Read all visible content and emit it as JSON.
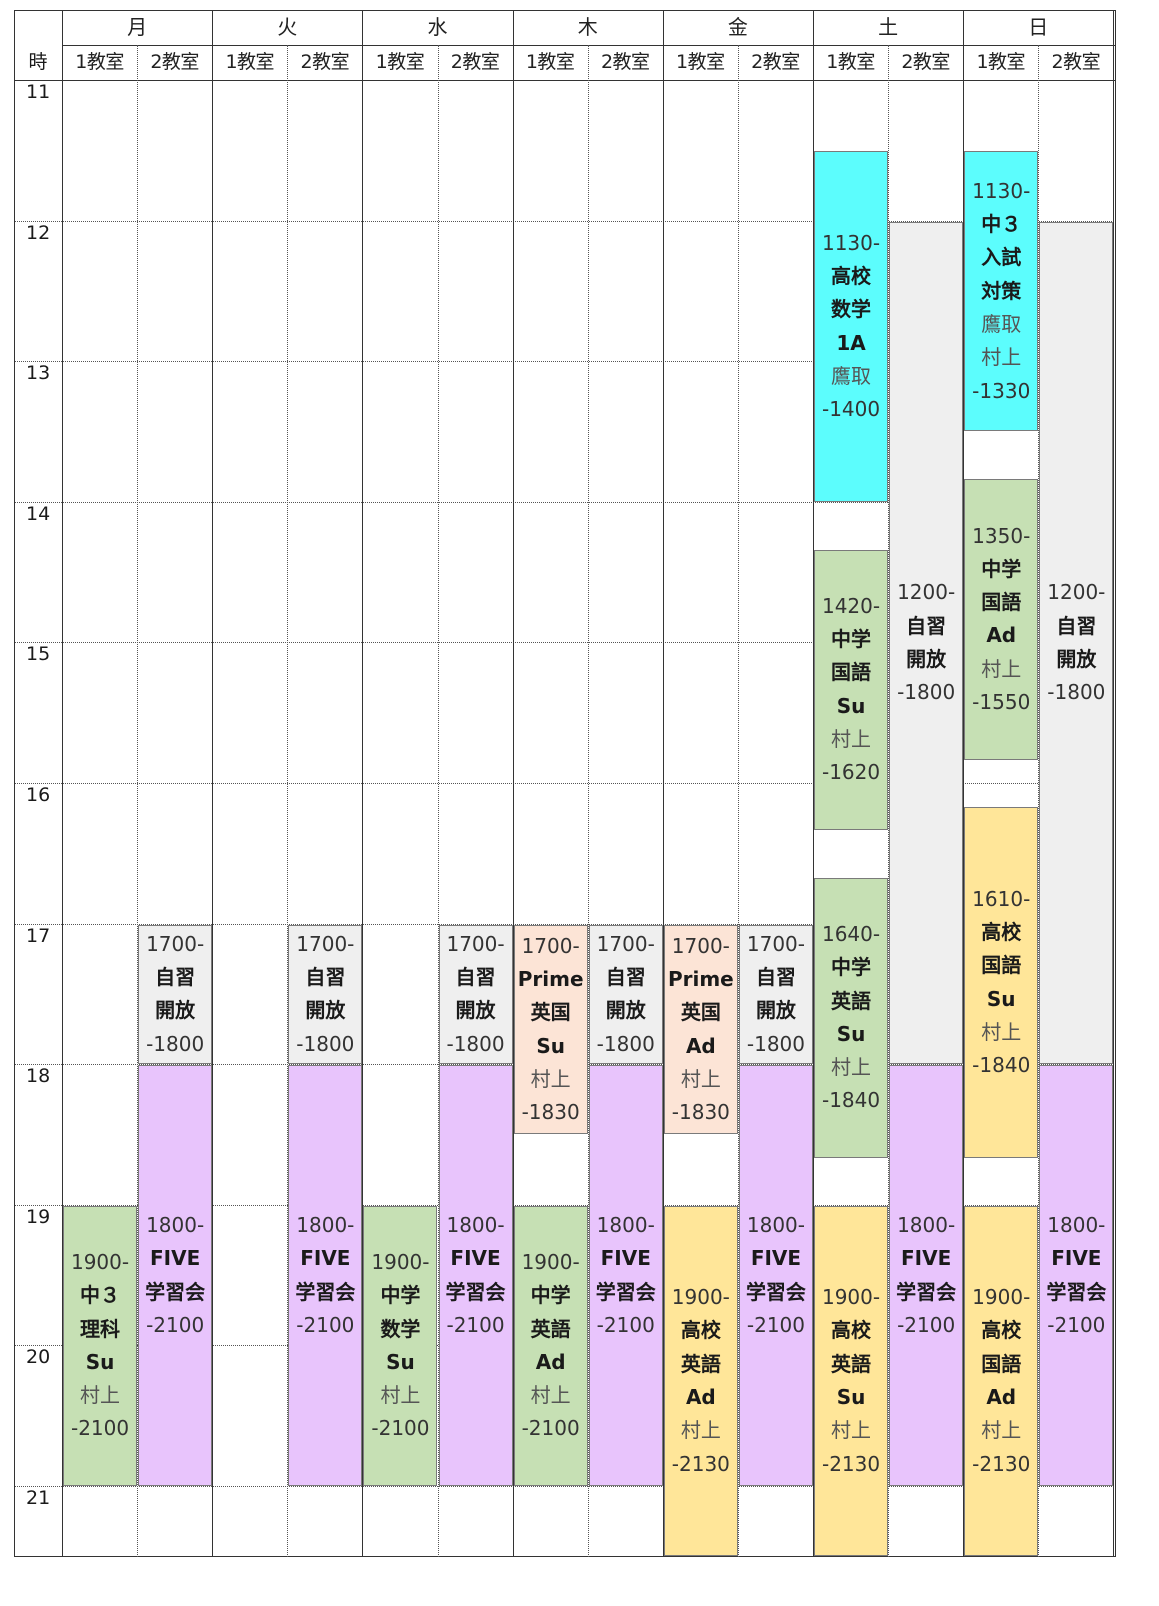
{
  "header": {
    "hour_label": "時",
    "days": [
      "月",
      "火",
      "水",
      "木",
      "金",
      "土",
      "日"
    ],
    "rooms": [
      "1教室",
      "2教室"
    ]
  },
  "hours": [
    "11",
    "12",
    "13",
    "14",
    "15",
    "16",
    "17",
    "18",
    "19",
    "20",
    "21"
  ],
  "colors": {
    "cyan": "#5cfdfd",
    "green": "#c6e0b4",
    "gray": "#efefef",
    "peach": "#fce4d6",
    "purple": "#e8c4fc",
    "yellow": "#ffe699"
  },
  "events": [
    {
      "day": 0,
      "room": 1,
      "start": "1700-",
      "lines": [
        "自習",
        "開放"
      ],
      "teacher": "",
      "end": "-1800",
      "color": "gray"
    },
    {
      "day": 0,
      "room": 1,
      "start": "1800-",
      "lines": [
        "FIVE",
        "学習会"
      ],
      "teacher": "",
      "end": "-2100",
      "color": "purple"
    },
    {
      "day": 0,
      "room": 0,
      "start": "1900-",
      "lines": [
        "中３",
        "理科",
        "Su"
      ],
      "teacher": "村上",
      "end": "-2100",
      "color": "green"
    },
    {
      "day": 1,
      "room": 1,
      "start": "1700-",
      "lines": [
        "自習",
        "開放"
      ],
      "teacher": "",
      "end": "-1800",
      "color": "gray"
    },
    {
      "day": 1,
      "room": 1,
      "start": "1800-",
      "lines": [
        "FIVE",
        "学習会"
      ],
      "teacher": "",
      "end": "-2100",
      "color": "purple"
    },
    {
      "day": 2,
      "room": 1,
      "start": "1700-",
      "lines": [
        "自習",
        "開放"
      ],
      "teacher": "",
      "end": "-1800",
      "color": "gray"
    },
    {
      "day": 2,
      "room": 1,
      "start": "1800-",
      "lines": [
        "FIVE",
        "学習会"
      ],
      "teacher": "",
      "end": "-2100",
      "color": "purple"
    },
    {
      "day": 2,
      "room": 0,
      "start": "1900-",
      "lines": [
        "中学",
        "数学",
        "Su"
      ],
      "teacher": "村上",
      "end": "-2100",
      "color": "green"
    },
    {
      "day": 3,
      "room": 0,
      "start": "1700-",
      "lines": [
        "Prime",
        "英国",
        "Su"
      ],
      "teacher": "村上",
      "end": "-1830",
      "color": "peach"
    },
    {
      "day": 3,
      "room": 1,
      "start": "1700-",
      "lines": [
        "自習",
        "開放"
      ],
      "teacher": "",
      "end": "-1800",
      "color": "gray"
    },
    {
      "day": 3,
      "room": 1,
      "start": "1800-",
      "lines": [
        "FIVE",
        "学習会"
      ],
      "teacher": "",
      "end": "-2100",
      "color": "purple"
    },
    {
      "day": 3,
      "room": 0,
      "start": "1900-",
      "lines": [
        "中学",
        "英語",
        "Ad"
      ],
      "teacher": "村上",
      "end": "-2100",
      "color": "green"
    },
    {
      "day": 4,
      "room": 0,
      "start": "1700-",
      "lines": [
        "Prime",
        "英国",
        "Ad"
      ],
      "teacher": "村上",
      "end": "-1830",
      "color": "peach"
    },
    {
      "day": 4,
      "room": 1,
      "start": "1700-",
      "lines": [
        "自習",
        "開放"
      ],
      "teacher": "",
      "end": "-1800",
      "color": "gray"
    },
    {
      "day": 4,
      "room": 1,
      "start": "1800-",
      "lines": [
        "FIVE",
        "学習会"
      ],
      "teacher": "",
      "end": "-2100",
      "color": "purple"
    },
    {
      "day": 4,
      "room": 0,
      "start": "1900-",
      "lines": [
        "高校",
        "英語",
        "Ad"
      ],
      "teacher": "村上",
      "end": "-2130",
      "color": "yellow"
    },
    {
      "day": 5,
      "room": 0,
      "start": "1130-",
      "lines": [
        "高校",
        "数学",
        "1A"
      ],
      "teacher": "鷹取",
      "end": "-1400",
      "color": "cyan"
    },
    {
      "day": 5,
      "room": 0,
      "start": "1420-",
      "lines": [
        "中学",
        "国語",
        "Su"
      ],
      "teacher": "村上",
      "end": "-1620",
      "color": "green"
    },
    {
      "day": 5,
      "room": 0,
      "start": "1640-",
      "lines": [
        "中学",
        "英語",
        "Su"
      ],
      "teacher": "村上",
      "end": "-1840",
      "color": "green"
    },
    {
      "day": 5,
      "room": 0,
      "start": "1900-",
      "lines": [
        "高校",
        "英語",
        "Su"
      ],
      "teacher": "村上",
      "end": "-2130",
      "color": "yellow"
    },
    {
      "day": 5,
      "room": 1,
      "start": "1200-",
      "lines": [
        "自習",
        "開放"
      ],
      "teacher": "",
      "end": "-1800",
      "color": "gray"
    },
    {
      "day": 5,
      "room": 1,
      "start": "1800-",
      "lines": [
        "FIVE",
        "学習会"
      ],
      "teacher": "",
      "end": "-2100",
      "color": "purple"
    },
    {
      "day": 6,
      "room": 0,
      "start": "1130-",
      "lines": [
        "中３",
        "入試",
        "対策"
      ],
      "teacher": "鷹取\n村上",
      "end": "-1330",
      "color": "cyan"
    },
    {
      "day": 6,
      "room": 0,
      "start": "1350-",
      "lines": [
        "中学",
        "国語",
        "Ad"
      ],
      "teacher": "村上",
      "end": "-1550",
      "color": "green"
    },
    {
      "day": 6,
      "room": 0,
      "start": "1610-",
      "lines": [
        "高校",
        "国語",
        "Su"
      ],
      "teacher": "村上",
      "end": "-1840",
      "color": "yellow"
    },
    {
      "day": 6,
      "room": 0,
      "start": "1900-",
      "lines": [
        "高校",
        "国語",
        "Ad"
      ],
      "teacher": "村上",
      "end": "-2130",
      "color": "yellow"
    },
    {
      "day": 6,
      "room": 1,
      "start": "1200-",
      "lines": [
        "自習",
        "開放"
      ],
      "teacher": "",
      "end": "-1800",
      "color": "gray"
    },
    {
      "day": 6,
      "room": 1,
      "start": "1800-",
      "lines": [
        "FIVE",
        "学習会"
      ],
      "teacher": "",
      "end": "-2100",
      "color": "purple"
    }
  ]
}
